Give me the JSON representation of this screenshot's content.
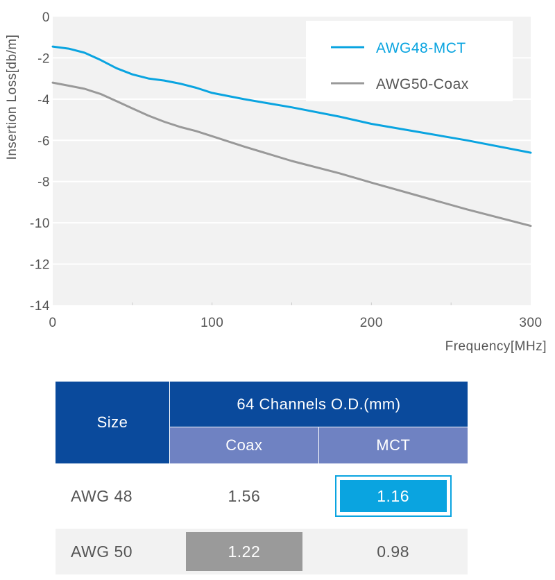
{
  "chart_data": {
    "type": "line",
    "xlabel": "Frequency[MHz]",
    "ylabel": "Insertion Loss[db/m]",
    "xlim": [
      0,
      300
    ],
    "ylim": [
      -14,
      0
    ],
    "x_ticks": [
      "0",
      "100",
      "200",
      "300"
    ],
    "y_ticks": [
      "0",
      "-2",
      "-4",
      "-6",
      "-8",
      "-10",
      "-12",
      "-14"
    ],
    "legend_position": "top-right",
    "grid": "horizontal",
    "series": [
      {
        "name": "AWG48-MCT",
        "color": "#0aa4e0",
        "x": [
          0,
          10,
          20,
          30,
          40,
          50,
          60,
          70,
          80,
          90,
          100,
          120,
          150,
          180,
          200,
          230,
          260,
          300
        ],
        "y": [
          -1.45,
          -1.55,
          -1.75,
          -2.1,
          -2.5,
          -2.8,
          -3.0,
          -3.1,
          -3.25,
          -3.45,
          -3.7,
          -4.0,
          -4.4,
          -4.85,
          -5.2,
          -5.6,
          -6.0,
          -6.6
        ]
      },
      {
        "name": "AWG50-Coax",
        "color": "#999999",
        "x": [
          0,
          10,
          20,
          30,
          40,
          50,
          60,
          70,
          80,
          90,
          100,
          120,
          150,
          180,
          200,
          230,
          260,
          300
        ],
        "y": [
          -3.2,
          -3.35,
          -3.5,
          -3.75,
          -4.1,
          -4.45,
          -4.8,
          -5.1,
          -5.35,
          -5.55,
          -5.8,
          -6.3,
          -7.0,
          -7.6,
          -8.05,
          -8.7,
          -9.35,
          -10.15
        ]
      }
    ]
  },
  "table": {
    "size_header": "Size",
    "group_header": "64 Channels O.D.(mm)",
    "col_coax": "Coax",
    "col_mct": "MCT",
    "rows": [
      {
        "label": "AWG 48",
        "coax": "1.56",
        "mct": "1.16"
      },
      {
        "label": "AWG 50",
        "coax": "1.22",
        "mct": "0.98"
      }
    ]
  }
}
